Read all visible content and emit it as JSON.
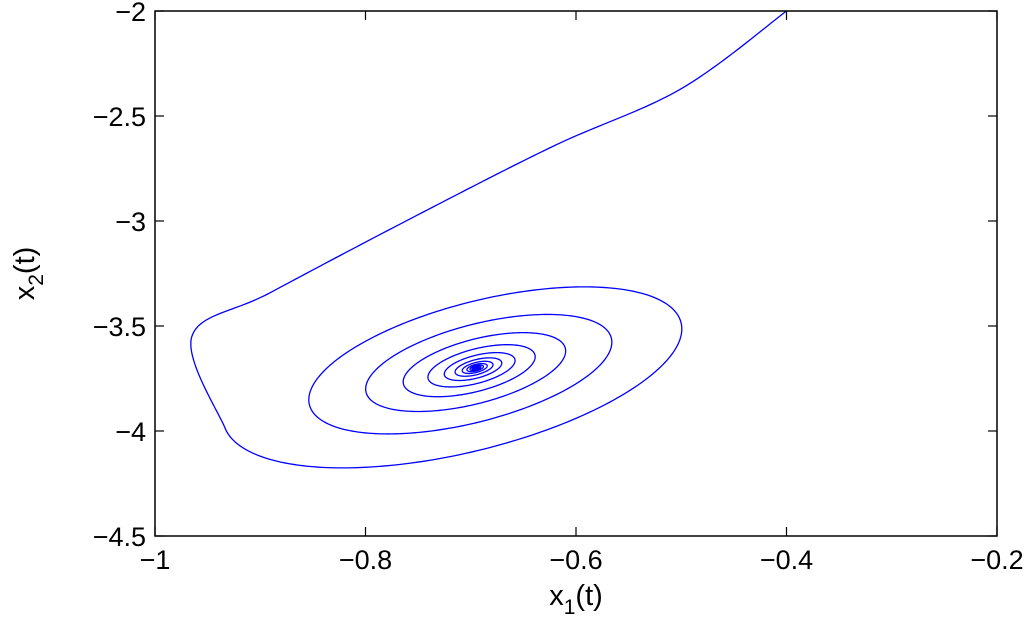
{
  "chart_data": {
    "type": "line",
    "title": "",
    "xlabel": {
      "base": "x",
      "sub": "1",
      "suffix": "(t)"
    },
    "ylabel": {
      "base": "x",
      "sub": "2",
      "suffix": "(t)"
    },
    "xlim": [
      -1,
      -0.2
    ],
    "ylim": [
      -4.5,
      -2
    ],
    "xticks": [
      -1,
      -0.8,
      -0.6,
      -0.4,
      -0.2
    ],
    "yticks": [
      -4.5,
      -4,
      -3.5,
      -3,
      -2.5,
      -2
    ],
    "xtick_labels": [
      "−1",
      "−0.8",
      "−0.6",
      "−0.4",
      "−0.2"
    ],
    "ytick_labels": [
      "−4.5",
      "−4",
      "−3.5",
      "−3",
      "−2.5",
      "−2"
    ],
    "grid": false,
    "box": true,
    "series": [
      {
        "color": "#0000ff",
        "trajectory": {
          "start": [
            -0.4,
            -2.0
          ],
          "approach": [
            [
              -0.5,
              -2.37
            ],
            [
              -0.62,
              -2.64
            ],
            [
              -0.75,
              -2.97
            ],
            [
              -0.89,
              -3.34
            ],
            [
              -0.965,
              -3.55
            ]
          ],
          "equilibrium": [
            -0.695,
            -3.7
          ],
          "first_loop_extent": {
            "x": [
              -0.98,
              -0.49
            ],
            "y": [
              -4.07,
              -3.22
            ]
          },
          "decay_per_turn": 0.66,
          "turns": 16
        }
      }
    ]
  }
}
